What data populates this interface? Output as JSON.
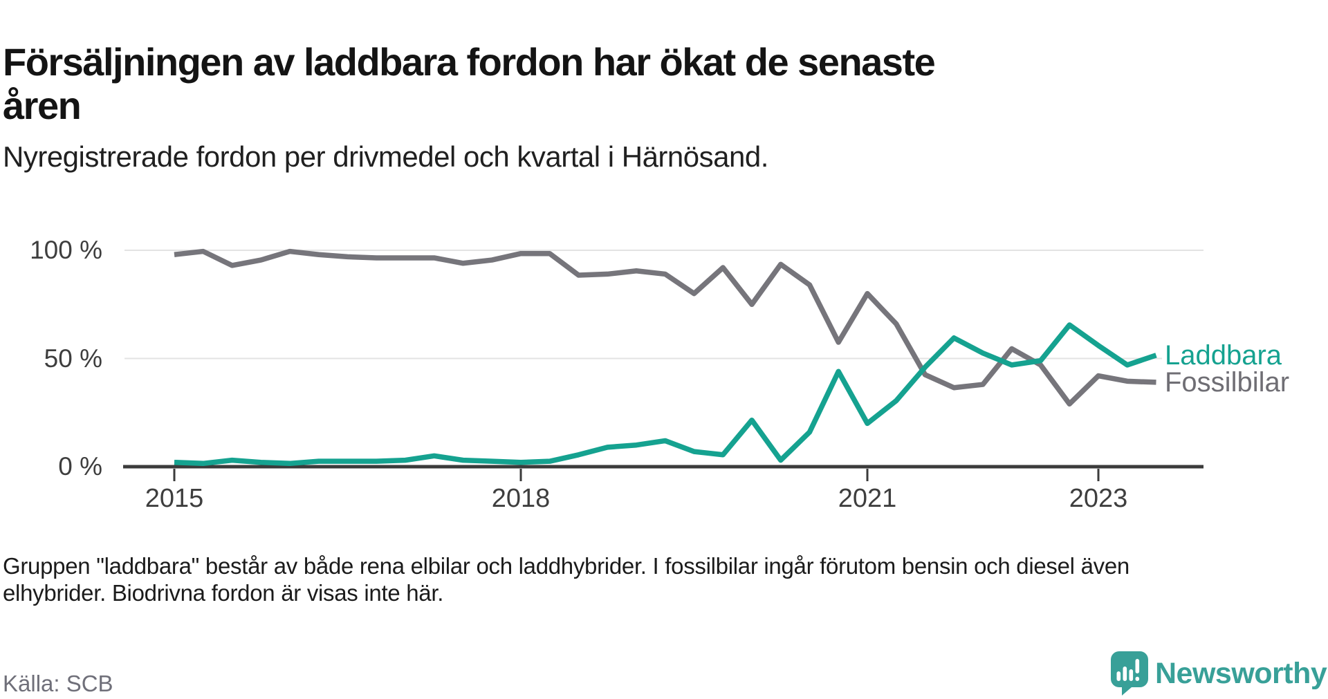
{
  "header": {
    "title_line1": "Försäljningen av laddbara fordon har ökat de senaste",
    "title_line2": "åren",
    "subtitle": "Nyregistrerade fordon per drivmedel och kvartal i Härnösand."
  },
  "chart_data": {
    "type": "line",
    "title": "Försäljningen av laddbara fordon har ökat de senaste åren",
    "subtitle": "Nyregistrerade fordon per drivmedel och kvartal i Härnösand.",
    "unit": "%",
    "ylim": [
      0,
      100
    ],
    "grid": "horizontal",
    "legend_position": "right-of-line-ends",
    "x": [
      "2015 Q1",
      "2015 Q2",
      "2015 Q3",
      "2015 Q4",
      "2016 Q1",
      "2016 Q2",
      "2016 Q3",
      "2016 Q4",
      "2017 Q1",
      "2017 Q2",
      "2017 Q3",
      "2017 Q4",
      "2018 Q1",
      "2018 Q2",
      "2018 Q3",
      "2018 Q4",
      "2019 Q1",
      "2019 Q2",
      "2019 Q3",
      "2019 Q4",
      "2020 Q1",
      "2020 Q2",
      "2020 Q3",
      "2020 Q4",
      "2021 Q1",
      "2021 Q2",
      "2021 Q3",
      "2021 Q4",
      "2022 Q1",
      "2022 Q2",
      "2022 Q3",
      "2022 Q4",
      "2023 Q1",
      "2023 Q2",
      "2023 Q3"
    ],
    "series": [
      {
        "name": "Fossilbilar",
        "color": "#76757b",
        "label_color": "#6f6e74",
        "values": [
          98,
          99.5,
          93,
          95.5,
          99.5,
          98,
          97,
          96.5,
          96.5,
          96.5,
          94,
          95.5,
          98.5,
          98.5,
          88.5,
          89,
          90.5,
          89,
          80,
          92,
          75,
          93.5,
          84,
          57.5,
          80,
          66,
          42.5,
          36.5,
          38,
          54.5,
          47,
          29,
          42,
          39.5,
          39
        ]
      },
      {
        "name": "Laddbara",
        "color": "#15a290",
        "label_color": "#15a290",
        "values": [
          2,
          1.5,
          3,
          2,
          1.5,
          2.5,
          2.5,
          2.5,
          3,
          5,
          3,
          2.5,
          2,
          2.5,
          5.5,
          9,
          10,
          12,
          7,
          5.5,
          21.5,
          3,
          16,
          44,
          20,
          30.5,
          46,
          59.5,
          52.5,
          47,
          49,
          65.5,
          56,
          47,
          51.5
        ]
      }
    ],
    "yticks": [
      {
        "label": "0 %",
        "value": 0
      },
      {
        "label": "50 %",
        "value": 50
      },
      {
        "label": "100 %",
        "value": 100
      }
    ],
    "xticks": [
      {
        "label": "2015",
        "quarter_index": 0
      },
      {
        "label": "2018",
        "quarter_index": 12
      },
      {
        "label": "2021",
        "quarter_index": 24
      },
      {
        "label": "2023",
        "quarter_index": 32
      }
    ]
  },
  "footer": {
    "note_line1": "Gruppen \"laddbara\" består av både rena elbilar och laddhybrider. I fossilbilar ingår förutom bensin och diesel även",
    "note_line2": "elhybrider. Biodrivna fordon är visas inte här.",
    "source": "Källa: SCB"
  },
  "branding": {
    "logo_text": "Newsworthy",
    "logo_color": "#38a098"
  }
}
